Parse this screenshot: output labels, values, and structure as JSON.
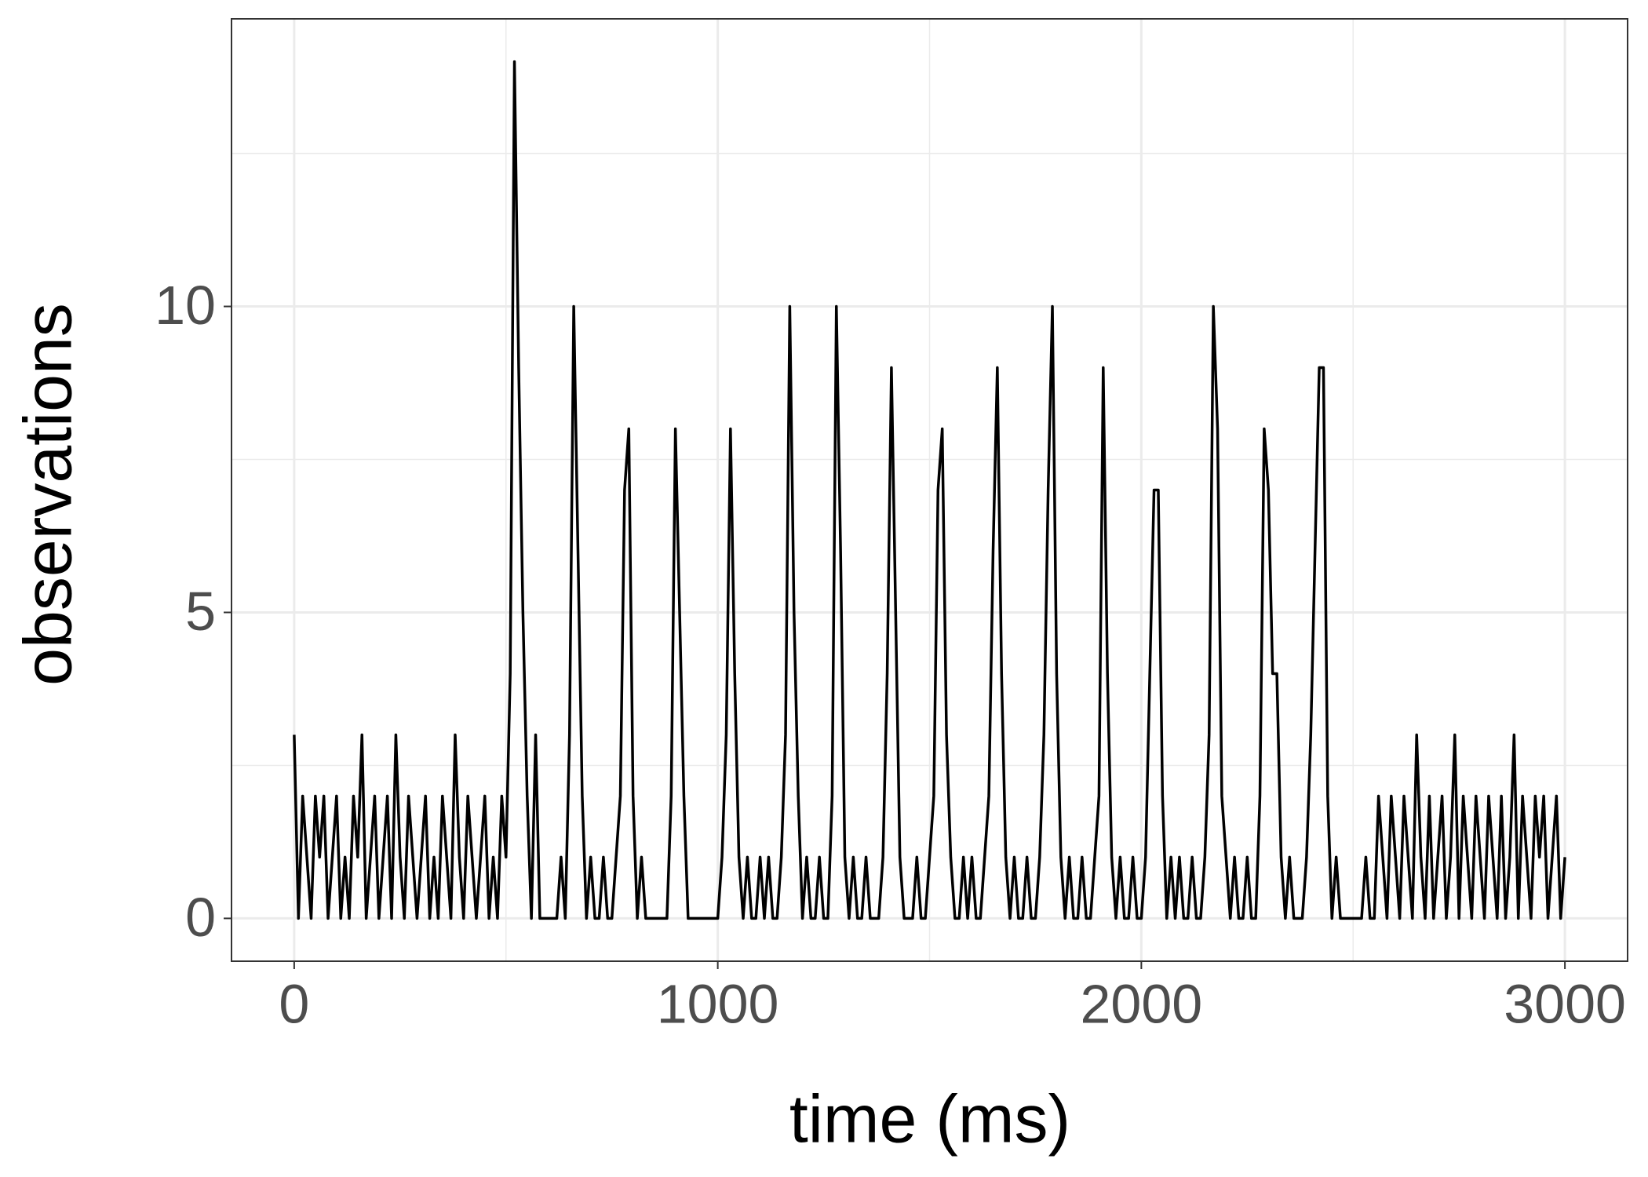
{
  "chart_data": {
    "type": "line",
    "x_label": "time (ms)",
    "y_label": "observations",
    "x": [
      0,
      10,
      20,
      30,
      40,
      50,
      60,
      70,
      80,
      90,
      100,
      110,
      120,
      130,
      140,
      150,
      160,
      170,
      180,
      190,
      200,
      210,
      220,
      230,
      240,
      250,
      260,
      270,
      280,
      290,
      300,
      310,
      320,
      330,
      340,
      350,
      360,
      370,
      380,
      390,
      400,
      410,
      420,
      430,
      440,
      450,
      460,
      470,
      480,
      490,
      500,
      510,
      520,
      530,
      540,
      550,
      560,
      570,
      580,
      590,
      600,
      610,
      620,
      630,
      640,
      650,
      660,
      670,
      680,
      690,
      700,
      710,
      720,
      730,
      740,
      750,
      760,
      770,
      780,
      790,
      800,
      810,
      820,
      830,
      840,
      850,
      860,
      870,
      880,
      890,
      900,
      910,
      920,
      930,
      940,
      950,
      960,
      970,
      980,
      990,
      1000,
      1010,
      1020,
      1030,
      1040,
      1050,
      1060,
      1070,
      1080,
      1090,
      1100,
      1110,
      1120,
      1130,
      1140,
      1150,
      1160,
      1170,
      1180,
      1190,
      1200,
      1210,
      1220,
      1230,
      1240,
      1250,
      1260,
      1270,
      1280,
      1290,
      1300,
      1310,
      1320,
      1330,
      1340,
      1350,
      1360,
      1370,
      1380,
      1390,
      1400,
      1410,
      1420,
      1430,
      1440,
      1450,
      1460,
      1470,
      1480,
      1490,
      1500,
      1510,
      1520,
      1530,
      1540,
      1550,
      1560,
      1570,
      1580,
      1590,
      1600,
      1610,
      1620,
      1630,
      1640,
      1650,
      1660,
      1670,
      1680,
      1690,
      1700,
      1710,
      1720,
      1730,
      1740,
      1750,
      1760,
      1770,
      1780,
      1790,
      1800,
      1810,
      1820,
      1830,
      1840,
      1850,
      1860,
      1870,
      1880,
      1890,
      1900,
      1910,
      1920,
      1930,
      1940,
      1950,
      1960,
      1970,
      1980,
      1990,
      2000,
      2010,
      2020,
      2030,
      2040,
      2050,
      2060,
      2070,
      2080,
      2090,
      2100,
      2110,
      2120,
      2130,
      2140,
      2150,
      2160,
      2170,
      2180,
      2190,
      2200,
      2210,
      2220,
      2230,
      2240,
      2250,
      2260,
      2270,
      2280,
      2290,
      2300,
      2310,
      2320,
      2330,
      2340,
      2350,
      2360,
      2370,
      2380,
      2390,
      2400,
      2410,
      2420,
      2430,
      2440,
      2450,
      2460,
      2470,
      2480,
      2490,
      2500,
      2510,
      2520,
      2530,
      2540,
      2550,
      2560,
      2570,
      2580,
      2590,
      2600,
      2610,
      2620,
      2630,
      2640,
      2650,
      2660,
      2670,
      2680,
      2690,
      2700,
      2710,
      2720,
      2730,
      2740,
      2750,
      2760,
      2770,
      2780,
      2790,
      2800,
      2810,
      2820,
      2830,
      2840,
      2850,
      2860,
      2870,
      2880,
      2890,
      2900,
      2910,
      2920,
      2930,
      2940,
      2950,
      2960,
      2970,
      2980,
      2990,
      3000
    ],
    "values": [
      3,
      0,
      2,
      1,
      0,
      2,
      1,
      2,
      0,
      1,
      2,
      0,
      1,
      0,
      2,
      1,
      3,
      0,
      1,
      2,
      0,
      1,
      2,
      0,
      3,
      1,
      0,
      2,
      1,
      0,
      1,
      2,
      0,
      1,
      0,
      2,
      1,
      0,
      3,
      1,
      0,
      2,
      1,
      0,
      1,
      2,
      0,
      1,
      0,
      2,
      1,
      4,
      14,
      9,
      5,
      2,
      0,
      3,
      0,
      0,
      0,
      0,
      0,
      1,
      0,
      3,
      10,
      6,
      2,
      0,
      1,
      0,
      0,
      1,
      0,
      0,
      1,
      2,
      7,
      8,
      2,
      0,
      1,
      0,
      0,
      0,
      0,
      0,
      0,
      2,
      8,
      5,
      2,
      0,
      0,
      0,
      0,
      0,
      0,
      0,
      0,
      1,
      3,
      8,
      4,
      1,
      0,
      1,
      0,
      0,
      1,
      0,
      1,
      0,
      0,
      1,
      3,
      10,
      5,
      2,
      0,
      1,
      0,
      0,
      1,
      0,
      0,
      2,
      10,
      6,
      1,
      0,
      1,
      0,
      0,
      1,
      0,
      0,
      0,
      1,
      4,
      9,
      5,
      1,
      0,
      0,
      0,
      1,
      0,
      0,
      1,
      2,
      7,
      8,
      3,
      1,
      0,
      0,
      1,
      0,
      1,
      0,
      0,
      1,
      2,
      6,
      9,
      4,
      1,
      0,
      1,
      0,
      0,
      1,
      0,
      0,
      1,
      3,
      7,
      10,
      4,
      1,
      0,
      1,
      0,
      0,
      1,
      0,
      0,
      1,
      2,
      9,
      4,
      1,
      0,
      1,
      0,
      0,
      1,
      0,
      0,
      1,
      4,
      7,
      7,
      2,
      0,
      1,
      0,
      1,
      0,
      0,
      1,
      0,
      0,
      1,
      3,
      10,
      8,
      2,
      1,
      0,
      1,
      0,
      0,
      1,
      0,
      0,
      2,
      8,
      7,
      4,
      4,
      1,
      0,
      1,
      0,
      0,
      0,
      1,
      3,
      6,
      9,
      9,
      2,
      0,
      1,
      0,
      0,
      0,
      0,
      0,
      0,
      1,
      0,
      0,
      2,
      1,
      0,
      2,
      1,
      0,
      2,
      1,
      0,
      3,
      1,
      0,
      2,
      0,
      1,
      2,
      0,
      1,
      3,
      0,
      2,
      1,
      0,
      2,
      1,
      0,
      2,
      1,
      0,
      2,
      0,
      1,
      3,
      0,
      2,
      1,
      0,
      2,
      1,
      2,
      0,
      1,
      2,
      0,
      1
    ],
    "color": "#000000",
    "xlim": [
      -148,
      3148
    ],
    "ylim": [
      -0.7,
      14.7
    ],
    "xticks": [
      0,
      1000,
      2000,
      3000
    ],
    "yticks": [
      0,
      5,
      10
    ],
    "minor_xticks": [
      500,
      1500,
      2500
    ],
    "minor_yticks": [
      2.5,
      7.5,
      12.5
    ],
    "grid": true
  }
}
